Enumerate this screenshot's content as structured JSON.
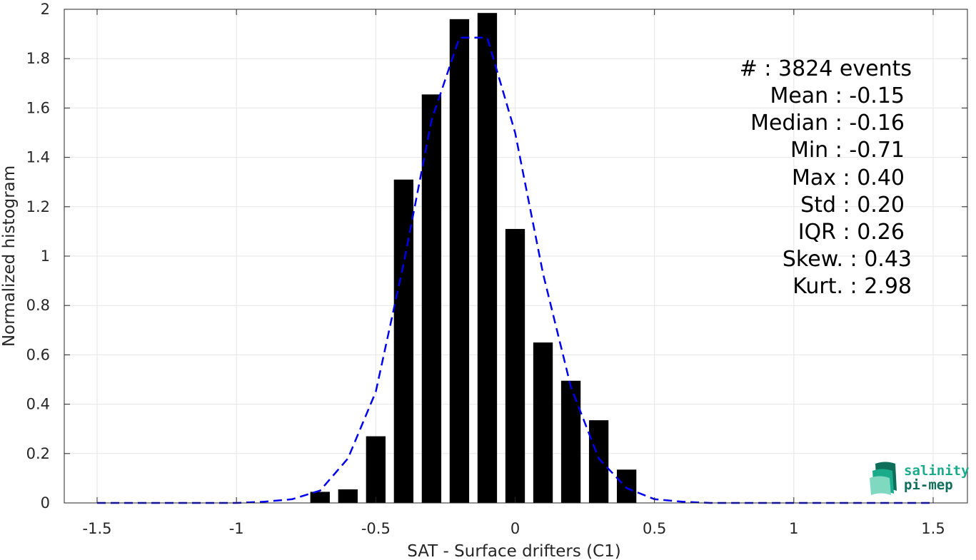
{
  "chart_data": {
    "type": "bar",
    "title": "",
    "xlabel": "SAT - Surface drifters (C1)",
    "ylabel": "Normalized histogram",
    "xlim": [
      -1.5,
      1.5
    ],
    "ylim": [
      0,
      2
    ],
    "grid": true,
    "x_ticks": [
      -1.5,
      -1,
      -0.5,
      0,
      0.5,
      1,
      1.5
    ],
    "x_tick_labels": [
      "-1.5",
      "-1",
      "-0.5",
      "0",
      "0.5",
      "1",
      "1.5"
    ],
    "y_ticks": [
      0,
      0.2,
      0.4,
      0.6,
      0.8,
      1,
      1.2,
      1.4,
      1.6,
      1.8,
      2
    ],
    "y_tick_labels": [
      "0",
      "0.2",
      "0.4",
      "0.6",
      "0.8",
      "1",
      "1.2",
      "1.4",
      "1.6",
      "1.8",
      "2"
    ],
    "bar_width": 0.07,
    "bars": {
      "name": "",
      "color": "#000000",
      "x": [
        -0.7,
        -0.6,
        -0.5,
        -0.4,
        -0.3,
        -0.2,
        -0.1,
        0.0,
        0.1,
        0.2,
        0.3,
        0.4
      ],
      "values": [
        0.045,
        0.055,
        0.27,
        1.31,
        1.655,
        1.96,
        1.985,
        1.11,
        0.65,
        0.495,
        0.335,
        0.135
      ]
    },
    "fit_curve": {
      "name": "",
      "color": "#0000ee",
      "style": "dashed",
      "x": [
        -1.5,
        -1.4,
        -1.3,
        -1.2,
        -1.1,
        -1.0,
        -0.9,
        -0.8,
        -0.7,
        -0.6,
        -0.5,
        -0.4,
        -0.3,
        -0.2,
        -0.1,
        0.0,
        0.1,
        0.2,
        0.3,
        0.4,
        0.5,
        0.6,
        0.7,
        0.8,
        0.9,
        1.0,
        1.1,
        1.2,
        1.3,
        1.4,
        1.5
      ],
      "y": [
        0,
        0,
        0,
        0,
        0,
        0,
        0.005,
        0.015,
        0.05,
        0.18,
        0.45,
        0.97,
        1.55,
        1.885,
        1.885,
        1.5,
        0.93,
        0.47,
        0.18,
        0.06,
        0.015,
        0.005,
        0,
        0,
        0,
        0,
        0,
        0,
        0,
        0,
        0
      ]
    },
    "stats_box": {
      "position": "top-right",
      "lines": [
        "#  : 3824 events",
        "Mean : -0.15",
        "Median : -0.16",
        "Min : -0.71",
        "Max : 0.40",
        "Std : 0.20",
        "IQR : 0.26",
        "Skew. : 0.43",
        "Kurt. : 2.98"
      ]
    }
  },
  "logo": {
    "line1": "salinity",
    "line2": "pi-mep",
    "color_primary": "#1aab8a",
    "color_secondary": "#0e6e5a"
  },
  "colors": {
    "axis": "#262626",
    "grid": "#e6e6e6"
  }
}
